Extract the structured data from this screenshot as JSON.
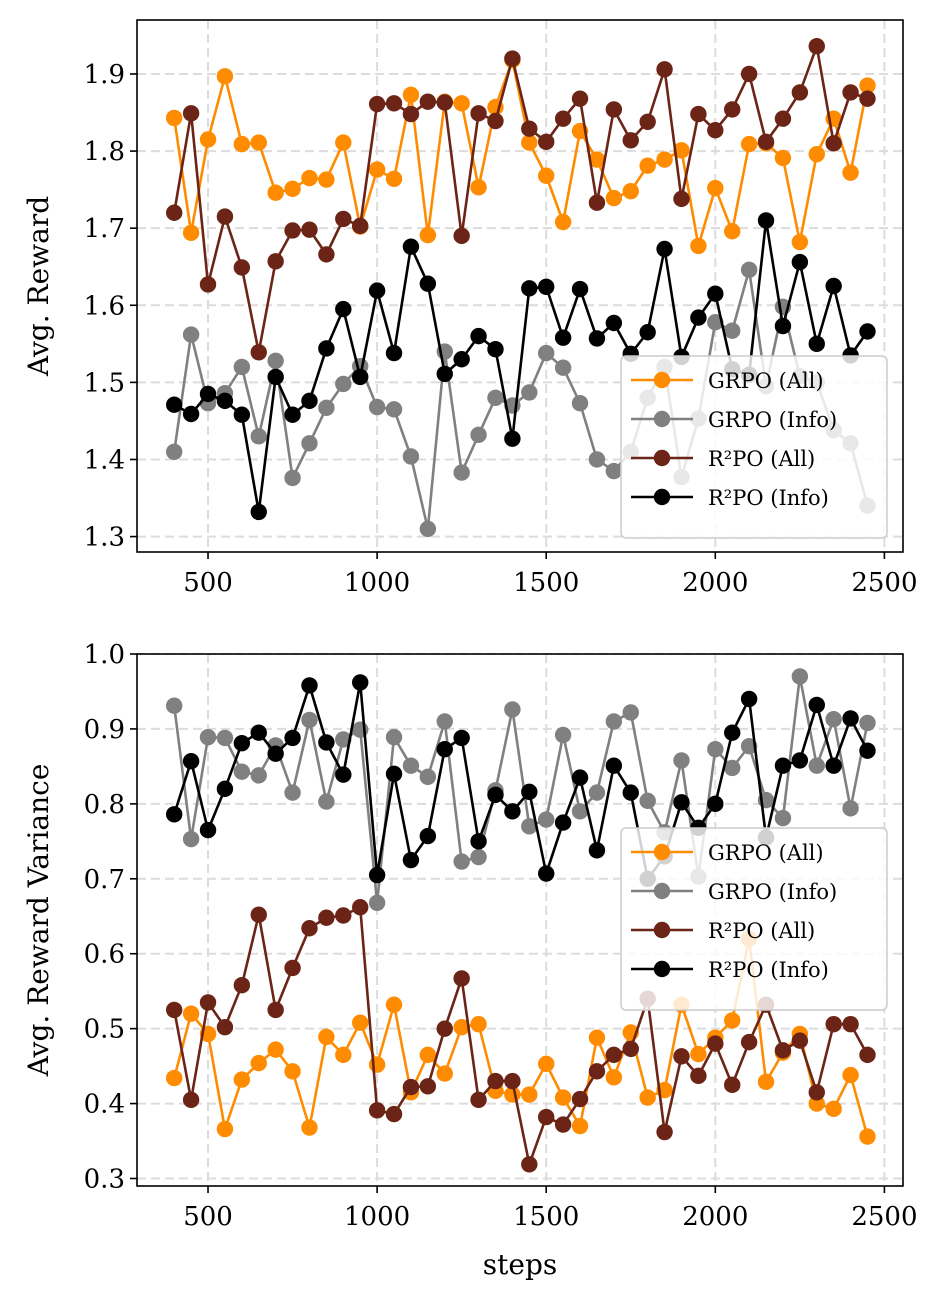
{
  "chart_data": [
    {
      "type": "line",
      "ylabel": "Avg. Reward",
      "xlabel": "",
      "xlim": [
        290,
        2555
      ],
      "ylim": [
        1.28,
        1.97
      ],
      "xticks": [
        500,
        1000,
        1500,
        2000,
        2500
      ],
      "xtick_labels": [
        "500",
        "1000",
        "1500",
        "2000",
        "2500"
      ],
      "yticks": [
        1.3,
        1.4,
        1.5,
        1.6,
        1.7,
        1.8,
        1.9
      ],
      "ytick_labels": [
        "1.3",
        "1.4",
        "1.5",
        "1.6",
        "1.7",
        "1.8",
        "1.9"
      ],
      "grid": true,
      "legend_position": "lower-right",
      "x": [
        400,
        450,
        500,
        550,
        600,
        650,
        700,
        750,
        800,
        850,
        900,
        950,
        1000,
        1050,
        1100,
        1150,
        1200,
        1250,
        1300,
        1350,
        1400,
        1450,
        1500,
        1550,
        1600,
        1650,
        1700,
        1750,
        1800,
        1850,
        1900,
        1950,
        2000,
        2050,
        2100,
        2150,
        2200,
        2250,
        2300,
        2350,
        2400,
        2450
      ],
      "series": [
        {
          "name": "GRPO (All)",
          "color": "#ff8c00",
          "values": [
            1.843,
            1.694,
            1.815,
            1.897,
            1.809,
            1.811,
            1.746,
            1.751,
            1.765,
            1.763,
            1.811,
            1.702,
            1.776,
            1.764,
            1.873,
            1.691,
            1.864,
            1.862,
            1.753,
            1.857,
            1.918,
            1.811,
            1.768,
            1.708,
            1.826,
            1.789,
            1.739,
            1.748,
            1.781,
            1.789,
            1.801,
            1.677,
            1.752,
            1.696,
            1.809,
            1.81,
            1.791,
            1.682,
            1.796,
            1.842,
            1.772,
            1.885
          ]
        },
        {
          "name": "GRPO (Info)",
          "color": "#808080",
          "values": [
            1.41,
            1.562,
            1.473,
            1.486,
            1.52,
            1.43,
            1.528,
            1.376,
            1.421,
            1.467,
            1.498,
            1.521,
            1.468,
            1.465,
            1.404,
            1.31,
            1.54,
            1.383,
            1.432,
            1.48,
            1.47,
            1.487,
            1.538,
            1.519,
            1.473,
            1.4,
            1.385,
            1.41,
            1.48,
            1.52,
            1.377,
            1.453,
            1.578,
            1.567,
            1.646,
            1.495,
            1.598,
            1.508,
            1.5,
            1.438,
            1.421,
            1.34
          ]
        },
        {
          "name": "R²PO (All)",
          "color": "#6b2416",
          "values": [
            1.72,
            1.849,
            1.627,
            1.715,
            1.649,
            1.539,
            1.657,
            1.697,
            1.698,
            1.666,
            1.712,
            1.703,
            1.861,
            1.862,
            1.848,
            1.864,
            1.863,
            1.69,
            1.849,
            1.839,
            1.92,
            1.829,
            1.812,
            1.842,
            1.868,
            1.733,
            1.854,
            1.814,
            1.838,
            1.906,
            1.738,
            1.848,
            1.827,
            1.854,
            1.9,
            1.812,
            1.842,
            1.876,
            1.936,
            1.81,
            1.876,
            1.868
          ]
        },
        {
          "name": "R²PO (Info)",
          "color": "#000000",
          "values": [
            1.471,
            1.459,
            1.485,
            1.476,
            1.458,
            1.332,
            1.507,
            1.458,
            1.476,
            1.544,
            1.595,
            1.507,
            1.619,
            1.538,
            1.676,
            1.628,
            1.511,
            1.53,
            1.56,
            1.543,
            1.427,
            1.622,
            1.624,
            1.558,
            1.621,
            1.557,
            1.577,
            1.537,
            1.565,
            1.673,
            1.533,
            1.584,
            1.615,
            1.517,
            1.51,
            1.71,
            1.573,
            1.656,
            1.55,
            1.625,
            1.535,
            1.566
          ]
        }
      ]
    },
    {
      "type": "line",
      "ylabel": "Avg. Reward Variance",
      "xlabel": "steps",
      "xlim": [
        290,
        2555
      ],
      "ylim": [
        0.29,
        1.0
      ],
      "xticks": [
        500,
        1000,
        1500,
        2000,
        2500
      ],
      "xtick_labels": [
        "500",
        "1000",
        "1500",
        "2000",
        "2500"
      ],
      "yticks": [
        0.3,
        0.4,
        0.5,
        0.6,
        0.7,
        0.8,
        0.9,
        1.0
      ],
      "ytick_labels": [
        "0.3",
        "0.4",
        "0.5",
        "0.6",
        "0.7",
        "0.8",
        "0.9",
        "1.0"
      ],
      "grid": true,
      "legend_position": "center-right",
      "x": [
        400,
        450,
        500,
        550,
        600,
        650,
        700,
        750,
        800,
        850,
        900,
        950,
        1000,
        1050,
        1100,
        1150,
        1200,
        1250,
        1300,
        1350,
        1400,
        1450,
        1500,
        1550,
        1600,
        1650,
        1700,
        1750,
        1800,
        1850,
        1900,
        1950,
        2000,
        2050,
        2100,
        2150,
        2200,
        2250,
        2300,
        2350,
        2400,
        2450
      ],
      "series": [
        {
          "name": "GRPO (All)",
          "color": "#ff8c00",
          "values": [
            0.434,
            0.52,
            0.493,
            0.366,
            0.432,
            0.454,
            0.472,
            0.443,
            0.368,
            0.489,
            0.465,
            0.508,
            0.452,
            0.532,
            0.415,
            0.465,
            0.44,
            0.502,
            0.506,
            0.417,
            0.412,
            0.412,
            0.453,
            0.408,
            0.37,
            0.488,
            0.435,
            0.495,
            0.408,
            0.418,
            0.532,
            0.466,
            0.488,
            0.511,
            0.62,
            0.429,
            0.468,
            0.493,
            0.4,
            0.393,
            0.438,
            0.356
          ]
        },
        {
          "name": "GRPO (Info)",
          "color": "#808080",
          "values": [
            0.931,
            0.753,
            0.889,
            0.888,
            0.843,
            0.838,
            0.878,
            0.815,
            0.912,
            0.803,
            0.886,
            0.899,
            0.668,
            0.889,
            0.851,
            0.836,
            0.91,
            0.723,
            0.729,
            0.818,
            0.926,
            0.77,
            0.779,
            0.892,
            0.79,
            0.815,
            0.91,
            0.922,
            0.804,
            0.762,
            0.858,
            0.703,
            0.873,
            0.848,
            0.877,
            0.805,
            0.781,
            0.97,
            0.851,
            0.913,
            0.794,
            0.908
          ]
        },
        {
          "name": "R²PO (All)",
          "color": "#6b2416",
          "values": [
            0.525,
            0.405,
            0.535,
            0.502,
            0.558,
            0.652,
            0.525,
            0.581,
            0.634,
            0.648,
            0.651,
            0.662,
            0.391,
            0.386,
            0.422,
            0.423,
            0.5,
            0.567,
            0.405,
            0.43,
            0.43,
            0.319,
            0.382,
            0.372,
            0.406,
            0.443,
            0.465,
            0.473,
            0.54,
            0.362,
            0.463,
            0.437,
            0.48,
            0.425,
            0.482,
            0.532,
            0.471,
            0.484,
            0.415,
            0.506,
            0.506,
            0.465
          ]
        },
        {
          "name": "R²PO (Info)",
          "color": "#000000",
          "values": [
            0.786,
            0.857,
            0.765,
            0.82,
            0.881,
            0.895,
            0.867,
            0.888,
            0.958,
            0.882,
            0.839,
            0.962,
            0.705,
            0.84,
            0.725,
            0.757,
            0.873,
            0.888,
            0.75,
            0.812,
            0.79,
            0.816,
            0.707,
            0.775,
            0.835,
            0.738,
            0.851,
            0.815,
            0.7,
            0.73,
            0.802,
            0.768,
            0.8,
            0.895,
            0.94,
            0.755,
            0.851,
            0.858,
            0.932,
            0.851,
            0.914,
            0.871
          ]
        }
      ]
    }
  ]
}
